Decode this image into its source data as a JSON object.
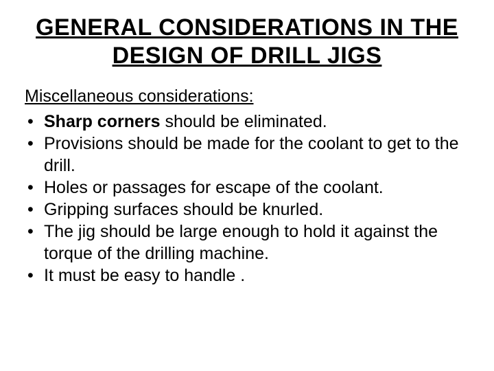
{
  "title": "GENERAL CONSIDERATIONS IN THE DESIGN OF DRILL JIGS",
  "subtitle": "Miscellaneous considerations:",
  "bullets": [
    {
      "bold": "Sharp corners",
      "rest": " should be eliminated."
    },
    {
      "bold": "",
      "rest": "Provisions should be made for the coolant to get to the drill."
    },
    {
      "bold": "",
      "rest": "Holes or passages for escape of the coolant."
    },
    {
      "bold": "",
      "rest": "Gripping surfaces should be knurled."
    },
    {
      "bold": "",
      "rest": "The jig should be large enough to hold it against the torque of the drilling machine."
    },
    {
      "bold": "",
      "rest": "It must be easy to handle ."
    }
  ],
  "colors": {
    "background": "#ffffff",
    "text": "#000000"
  },
  "typography": {
    "title_fontsize": 34,
    "body_fontsize": 25,
    "font_family": "Arial"
  }
}
